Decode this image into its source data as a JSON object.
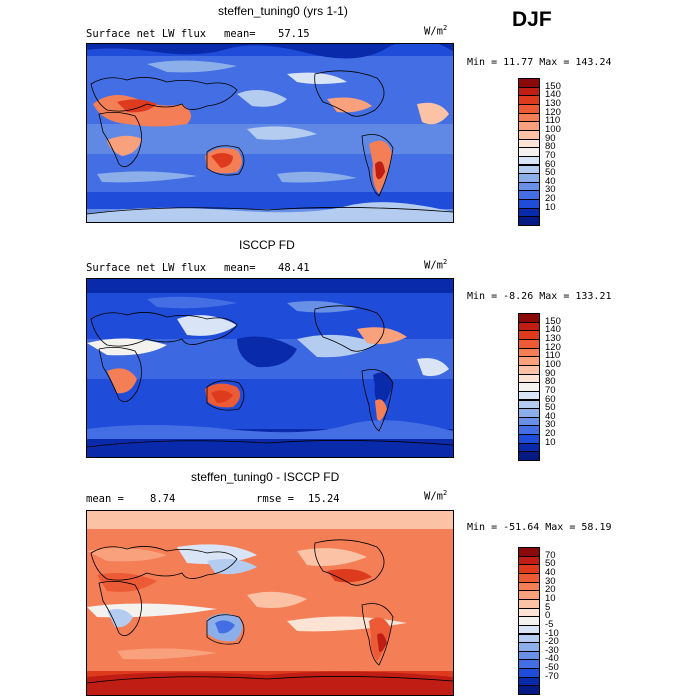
{
  "season": "DJF",
  "chart_data": [
    {
      "type": "heatmap",
      "title": "steffen_tuning0 (yrs 1-1)",
      "field_label": "Surface net LW flux",
      "mean_label": "mean=",
      "mean_value": "57.15",
      "units_base": "W/m",
      "units_exp": "2",
      "minmax": "Min =  11.77 Max = 143.24",
      "min": 11.77,
      "max": 143.24,
      "colorbar_labels": [
        "150",
        "140",
        "130",
        "120",
        "110",
        "100",
        "90",
        "80",
        "70",
        "60",
        "50",
        "40",
        "30",
        "20",
        "10"
      ],
      "colorbar_colors": [
        "#8a0a0a",
        "#c01d14",
        "#de3a1e",
        "#ec5a36",
        "#f47e56",
        "#f9a07c",
        "#fbc2a6",
        "#fde3d3",
        "#f4f2ef",
        "#d9e5f6",
        "#b4ccf0",
        "#8cafea",
        "#6890e6",
        "#446fe4",
        "#1f4cd8",
        "#0a2aac",
        "#061a84"
      ]
    },
    {
      "type": "heatmap",
      "title": "ISCCP FD",
      "field_label": "Surface net LW flux",
      "mean_label": "mean=",
      "mean_value": "48.41",
      "units_base": "W/m",
      "units_exp": "2",
      "minmax": "Min =  -8.26 Max = 133.21",
      "min": -8.26,
      "max": 133.21,
      "colorbar_labels": [
        "150",
        "140",
        "130",
        "120",
        "110",
        "100",
        "90",
        "80",
        "70",
        "60",
        "50",
        "40",
        "30",
        "20",
        "10"
      ],
      "colorbar_colors": [
        "#8a0a0a",
        "#c01d14",
        "#de3a1e",
        "#ec5a36",
        "#f47e56",
        "#f9a07c",
        "#fbc2a6",
        "#fde3d3",
        "#f4f2ef",
        "#d9e5f6",
        "#b4ccf0",
        "#8cafea",
        "#6890e6",
        "#446fe4",
        "#1f4cd8",
        "#0a2aac",
        "#061a84"
      ]
    },
    {
      "type": "heatmap",
      "title": "steffen_tuning0 - ISCCP FD",
      "mean_label": "mean =",
      "mean_value": "8.74",
      "rmse_label": "rmse =",
      "rmse_value": "15.24",
      "units_base": "W/m",
      "units_exp": "2",
      "minmax": "Min = -51.64 Max =  58.19",
      "min": -51.64,
      "max": 58.19,
      "colorbar_labels": [
        "70",
        "50",
        "40",
        "30",
        "20",
        "10",
        "5",
        "0",
        "-5",
        "-10",
        "-20",
        "-30",
        "-40",
        "-50",
        "-70"
      ],
      "colorbar_colors": [
        "#8a0a0a",
        "#c01d14",
        "#de3a1e",
        "#ec5a36",
        "#f47e56",
        "#f9a07c",
        "#fbc2a6",
        "#fde3d3",
        "#f4f2ef",
        "#d9e5f6",
        "#b4ccf0",
        "#8cafea",
        "#6890e6",
        "#446fe4",
        "#1f4cd8",
        "#0a2aac",
        "#061a84"
      ]
    }
  ]
}
